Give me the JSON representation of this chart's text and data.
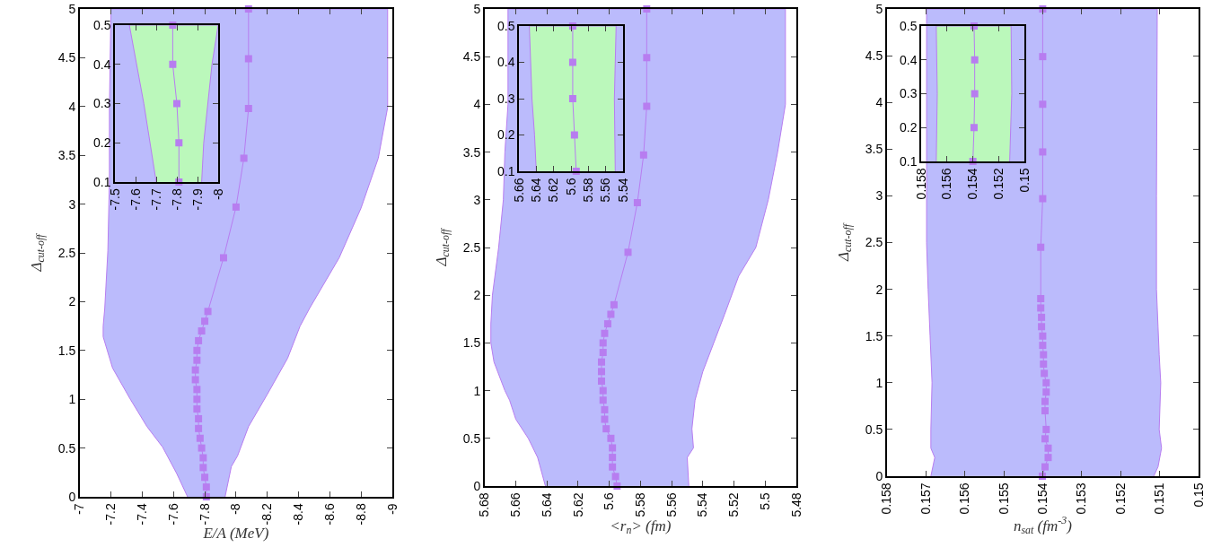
{
  "chart_data": [
    {
      "type": "line",
      "xlabel": "E/A (MeV)",
      "ylabel": "Δ$_{cut-off}$",
      "xlim": [
        -7,
        -9
      ],
      "xticks": [
        -7,
        -7.2,
        -7.4,
        -7.6,
        -7.8,
        -8,
        -8.2,
        -8.4,
        -8.6,
        -8.8,
        -9
      ],
      "ylim": [
        0,
        5
      ],
      "yticks": [
        0,
        0.5,
        1,
        1.5,
        2,
        2.5,
        3,
        3.5,
        4,
        4.5,
        5
      ],
      "series": [
        {
          "type": "area",
          "color": "#bbbbfc",
          "x": [
            -7.69,
            -7.62,
            -7.53,
            -7.43,
            -7.32,
            -7.21,
            -7.15,
            -7.15,
            -7.16,
            -7.18,
            -7.19,
            -7.19,
            -7.2,
            -8.97,
            -8.97,
            -8.91,
            -8.8,
            -8.66,
            -8.47,
            -8.41,
            -8.33,
            -8.2,
            -8.08,
            -8.01,
            -7.97,
            -7.93
          ],
          "values": [
            0,
            0.24,
            0.51,
            0.72,
            1.01,
            1.32,
            1.64,
            1.75,
            1.93,
            2.52,
            3.25,
            3.99,
            5,
            5,
            3.99,
            3.47,
            2.96,
            2.45,
            1.93,
            1.75,
            1.42,
            1.05,
            0.72,
            0.42,
            0.31,
            0
          ]
        },
        {
          "color": "#b77df0",
          "marker": "square",
          "x": [
            -7.81,
            -7.81,
            -7.8,
            -7.79,
            -7.79,
            -7.78,
            -7.77,
            -7.76,
            -7.76,
            -7.75,
            -7.75,
            -7.75,
            -7.74,
            -7.74,
            -7.75,
            -7.75,
            -7.76,
            -7.78,
            -7.8,
            -7.82,
            -7.92,
            -8.0,
            -8.05,
            -8.08,
            -8.08,
            -8.08
          ],
          "values": [
            0,
            0.1,
            0.2,
            0.3,
            0.4,
            0.5,
            0.6,
            0.7,
            0.8,
            0.9,
            1,
            1.1,
            1.2,
            1.3,
            1.4,
            1.5,
            1.6,
            1.7,
            1.8,
            1.9,
            2.45,
            2.97,
            3.47,
            3.98,
            4.49,
            5
          ]
        }
      ]
    },
    {
      "type": "line",
      "xlim": [
        -7.5,
        -8
      ],
      "xticks": [
        -7.5,
        -7.6,
        -7.7,
        -7.8,
        -7.9,
        -8
      ],
      "ylim": [
        0.1,
        0.5
      ],
      "yticks": [
        0.1,
        0.2,
        0.3,
        0.4,
        0.5
      ],
      "series": [
        {
          "type": "area",
          "color": "#bbf8bb",
          "x": [
            -7.7,
            -7.64,
            -7.57,
            -8.0,
            -7.97,
            -7.93,
            -7.92
          ],
          "values": [
            0.1,
            0.3,
            0.5,
            0.5,
            0.4,
            0.2,
            0.1
          ]
        },
        {
          "color": "#b77df0",
          "marker": "square",
          "x": [
            -7.81,
            -7.81,
            -7.8,
            -7.78,
            -7.78
          ],
          "values": [
            0.1,
            0.2,
            0.3,
            0.4,
            0.5
          ]
        }
      ]
    },
    {
      "type": "line",
      "xlabel": "<r$_{n}$> (fm)",
      "ylabel": "Δ$_{cut-off}$",
      "xlim": [
        5.68,
        5.48
      ],
      "xticks": [
        5.68,
        5.66,
        5.64,
        5.62,
        5.6,
        5.58,
        5.56,
        5.54,
        5.52,
        5.5,
        5.48
      ],
      "ylim": [
        0,
        5
      ],
      "yticks": [
        0,
        0.5,
        1,
        1.5,
        2,
        2.5,
        3,
        3.5,
        4,
        4.5,
        5
      ],
      "series": [
        {
          "type": "area",
          "color": "#bbbbfc",
          "x": [
            5.641,
            5.646,
            5.652,
            5.66,
            5.664,
            5.667,
            5.674,
            5.676,
            5.676,
            5.675,
            5.671,
            5.668,
            5.667,
            5.665,
            5.665,
            5.487,
            5.487,
            5.492,
            5.498,
            5.506,
            5.517,
            5.526,
            5.533,
            5.54,
            5.545,
            5.547,
            5.546,
            5.55,
            5.549
          ],
          "values": [
            0,
            0.3,
            0.5,
            0.7,
            0.9,
            1.0,
            1.3,
            1.5,
            1.7,
            2.0,
            2.5,
            3,
            3.5,
            4,
            5,
            5,
            4,
            3.5,
            3,
            2.5,
            2.2,
            1.8,
            1.5,
            1.2,
            0.9,
            0.6,
            0.4,
            0.3,
            0
          ]
        },
        {
          "color": "#b77df0",
          "marker": "square",
          "x": [
            5.595,
            5.596,
            5.598,
            5.598,
            5.598,
            5.599,
            5.602,
            5.603,
            5.603,
            5.604,
            5.604,
            5.605,
            5.605,
            5.605,
            5.604,
            5.604,
            5.603,
            5.601,
            5.599,
            5.597,
            5.588,
            5.582,
            5.578,
            5.576,
            5.576,
            5.576
          ],
          "values": [
            0,
            0.1,
            0.2,
            0.3,
            0.4,
            0.5,
            0.6,
            0.7,
            0.8,
            0.9,
            1,
            1.1,
            1.2,
            1.3,
            1.4,
            1.5,
            1.6,
            1.7,
            1.8,
            1.9,
            2.45,
            2.97,
            3.47,
            3.98,
            4.49,
            5
          ]
        }
      ]
    },
    {
      "type": "line",
      "xlim": [
        5.66,
        5.54
      ],
      "xticks": [
        5.66,
        5.64,
        5.62,
        5.6,
        5.58,
        5.56,
        5.54
      ],
      "ylim": [
        0.1,
        0.5
      ],
      "yticks": [
        0.1,
        0.2,
        0.3,
        0.4,
        0.5
      ],
      "series": [
        {
          "type": "area",
          "color": "#bbf8bb",
          "x": [
            5.64,
            5.642,
            5.645,
            5.648,
            5.548,
            5.55,
            5.549
          ],
          "values": [
            0.1,
            0.2,
            0.3,
            0.5,
            0.5,
            0.3,
            0.1
          ]
        },
        {
          "color": "#b77df0",
          "marker": "square",
          "x": [
            5.594,
            5.596,
            5.598,
            5.598,
            5.598
          ],
          "values": [
            0.1,
            0.2,
            0.3,
            0.4,
            0.5
          ]
        }
      ]
    },
    {
      "type": "line",
      "xlabel": "n$_{sat}$ (fm$^{-3}$)",
      "ylabel": "Δ$_{cut-off}$",
      "xlim": [
        0.158,
        0.15
      ],
      "xticks": [
        0.158,
        0.157,
        0.156,
        0.155,
        0.154,
        0.153,
        0.152,
        0.151,
        0.15
      ],
      "ylim": [
        0,
        5
      ],
      "yticks": [
        0,
        0.5,
        1,
        1.5,
        2,
        2.5,
        3,
        3.5,
        4,
        4.5,
        5
      ],
      "series": [
        {
          "type": "area",
          "color": "#bbbbfc",
          "x": [
            0.15687,
            0.15677,
            0.15687,
            0.15687,
            0.15684,
            0.15689,
            0.15694,
            0.15698,
            0.15698,
            0.15106,
            0.15108,
            0.15108,
            0.15104,
            0.15101,
            0.15097,
            0.15101,
            0.15095,
            0.15104,
            0.15115
          ],
          "values": [
            0,
            0.2,
            0.3,
            0.5,
            1.0,
            1.5,
            2.0,
            2.5,
            5,
            5,
            3,
            2,
            1.6,
            1.3,
            1.0,
            0.5,
            0.3,
            0.1,
            0
          ]
        },
        {
          "color": "#b77df0",
          "marker": "square",
          "x": [
            0.15401,
            0.15394,
            0.15386,
            0.15386,
            0.15394,
            0.15391,
            0.15394,
            0.15394,
            0.15391,
            0.15391,
            0.15396,
            0.15398,
            0.15398,
            0.154,
            0.154,
            0.15403,
            0.15403,
            0.15405,
            0.15405,
            0.15405,
            0.154,
            0.154,
            0.154,
            0.154,
            0.154
          ],
          "values": [
            0,
            0.1,
            0.2,
            0.3,
            0.4,
            0.5,
            0.7,
            0.8,
            0.9,
            1,
            1.1,
            1.2,
            1.3,
            1.4,
            1.5,
            1.6,
            1.7,
            1.8,
            1.9,
            2.45,
            2.97,
            3.47,
            3.98,
            4.49,
            5
          ]
        }
      ]
    },
    {
      "type": "line",
      "xlim": [
        0.158,
        0.15
      ],
      "xticks": [
        0.158,
        0.156,
        0.154,
        0.152,
        0.15
      ],
      "ylim": [
        0.1,
        0.5
      ],
      "yticks": [
        0.1,
        0.2,
        0.3,
        0.4,
        0.5
      ],
      "series": [
        {
          "type": "area",
          "color": "#bbf8bb",
          "x": [
            0.15683,
            0.15675,
            0.15683,
            0.15103,
            0.15098,
            0.15114
          ],
          "values": [
            0.1,
            0.3,
            0.5,
            0.5,
            0.3,
            0.1
          ]
        },
        {
          "color": "#b77df0",
          "marker": "square",
          "x": [
            0.15399,
            0.1539,
            0.15385,
            0.15385,
            0.1539
          ],
          "values": [
            0.1,
            0.2,
            0.3,
            0.4,
            0.5
          ]
        }
      ]
    }
  ]
}
